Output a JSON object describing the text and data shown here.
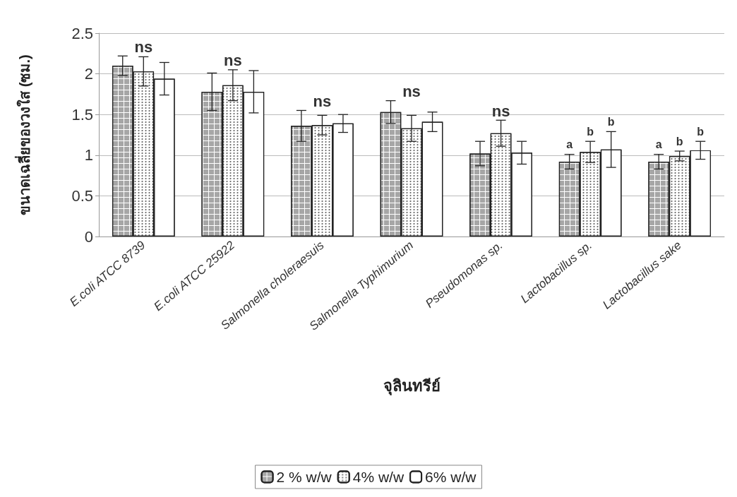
{
  "chart_data": {
    "type": "bar",
    "xlabel": "จุลินทรีย์",
    "ylabel": "ขนาดเฉลี่ยของวงใส (ซม.)",
    "categories": [
      "E.coli ATCC 8739",
      "E.coli ATCC 25922",
      "Salmonella choleraesuis",
      "Salmonella Typhimurium",
      "Pseudomonas sp.",
      "Lactobacillus sp.",
      "Lactobacillus sake"
    ],
    "series": [
      {
        "name": "2 % w/w",
        "color": "#ffffff",
        "values": [
          2.1,
          1.78,
          1.36,
          1.53,
          1.02,
          0.92,
          0.92
        ],
        "errors": [
          0.12,
          0.23,
          0.19,
          0.14,
          0.15,
          0.09,
          0.09
        ],
        "value_labels": [
          null,
          null,
          null,
          null,
          null,
          "a",
          "a"
        ]
      },
      {
        "name": "4% w/w",
        "color": "#ffffff",
        "values": [
          2.03,
          1.86,
          1.37,
          1.33,
          1.27,
          1.04,
          0.99
        ],
        "errors": [
          0.18,
          0.19,
          0.12,
          0.16,
          0.16,
          0.13,
          0.06
        ],
        "value_labels": [
          null,
          null,
          null,
          null,
          null,
          "b",
          "b"
        ]
      },
      {
        "name": "6% w/w",
        "color": "#ffffff",
        "values": [
          1.94,
          1.78,
          1.39,
          1.41,
          1.03,
          1.07,
          1.06
        ],
        "errors": [
          0.2,
          0.26,
          0.11,
          0.12,
          0.14,
          0.22,
          0.11
        ],
        "value_labels": [
          null,
          null,
          null,
          null,
          null,
          "b",
          "b"
        ]
      }
    ],
    "annotations": [
      "ns",
      "ns",
      "ns",
      "ns",
      "ns"
    ],
    "ylim": [
      0,
      2.5
    ],
    "yticks": [
      0,
      0.5,
      1,
      1.5,
      2,
      2.5
    ],
    "grid": "y",
    "legend": "bottom"
  }
}
